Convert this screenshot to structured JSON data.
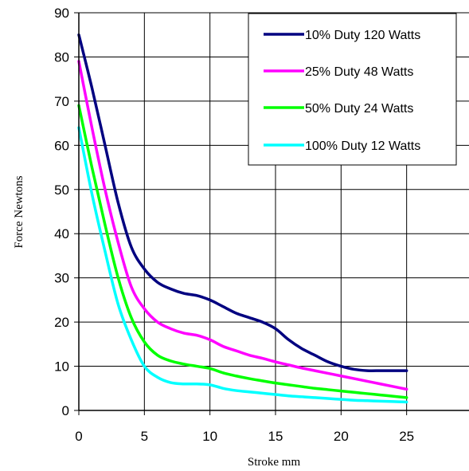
{
  "chart_data": {
    "type": "line",
    "title": "",
    "xlabel": "Stroke mm",
    "ylabel": "Force Newtons",
    "xlim": [
      0,
      30
    ],
    "ylim": [
      0,
      90
    ],
    "xticks": [
      0,
      5,
      10,
      15,
      20,
      25
    ],
    "yticks": [
      0,
      10,
      20,
      30,
      40,
      50,
      60,
      70,
      80,
      90
    ],
    "x_gridlines": [
      0,
      5,
      10,
      15,
      20,
      25,
      30
    ],
    "grid": true,
    "legend": "top-right",
    "series": [
      {
        "name": "10% Duty 120 Watts",
        "color": "#000080",
        "x": [
          0,
          1,
          2,
          3,
          4,
          5,
          6,
          7,
          8,
          9,
          10,
          11,
          12,
          13,
          14,
          15,
          16,
          17,
          18,
          19,
          20,
          21,
          22,
          23,
          24,
          25
        ],
        "y": [
          85,
          73,
          60,
          47,
          37,
          32,
          29,
          27.5,
          26.5,
          26,
          25,
          23.5,
          22,
          21,
          20,
          18.5,
          16,
          14,
          12.5,
          11,
          10,
          9.3,
          9,
          9,
          9,
          9
        ]
      },
      {
        "name": "25% Duty 48 Watts",
        "color": "#ff00ff",
        "x": [
          0,
          1,
          2,
          3,
          4,
          5,
          6,
          7,
          8,
          9,
          10,
          11,
          12,
          13,
          14,
          15,
          16,
          17,
          18,
          19,
          20,
          21,
          22,
          23,
          24,
          25
        ],
        "y": [
          79,
          64,
          50,
          38,
          28,
          23,
          20,
          18.5,
          17.5,
          17,
          16,
          14.5,
          13.5,
          12.5,
          11.8,
          11,
          10.3,
          9.6,
          9,
          8.4,
          7.8,
          7.2,
          6.6,
          6,
          5.4,
          4.8
        ]
      },
      {
        "name": "50% Duty 24 Watts",
        "color": "#00ff00",
        "x": [
          0,
          1,
          2,
          3,
          4,
          5,
          6,
          7,
          8,
          9,
          10,
          11,
          12,
          13,
          14,
          15,
          16,
          17,
          18,
          19,
          20,
          21,
          22,
          23,
          24,
          25
        ],
        "y": [
          69,
          55,
          42,
          30,
          21,
          15.5,
          12.5,
          11.2,
          10.5,
          10,
          9.5,
          8.5,
          7.8,
          7.2,
          6.7,
          6.2,
          5.8,
          5.4,
          5,
          4.7,
          4.4,
          4.1,
          3.8,
          3.5,
          3.2,
          2.9
        ]
      },
      {
        "name": "100% Duty 12 Watts",
        "color": "#00ffff",
        "x": [
          0,
          1,
          2,
          3,
          4,
          5,
          6,
          7,
          8,
          9,
          10,
          11,
          12,
          13,
          14,
          15,
          16,
          17,
          18,
          19,
          20,
          21,
          22,
          23,
          24,
          25
        ],
        "y": [
          64,
          49,
          36,
          24,
          16,
          10,
          7.5,
          6.3,
          6,
          6,
          5.8,
          5,
          4.5,
          4.2,
          3.9,
          3.6,
          3.3,
          3.1,
          2.9,
          2.7,
          2.5,
          2.3,
          2.2,
          2.1,
          2,
          1.9
        ]
      }
    ]
  }
}
